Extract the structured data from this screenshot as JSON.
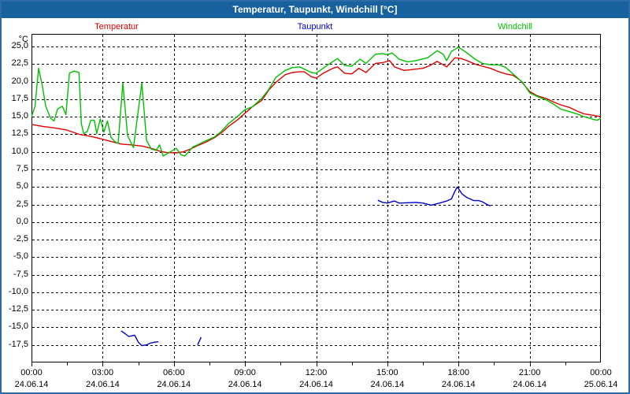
{
  "window": {
    "title": "Temperatur, Taupunkt, Windchill [°C]"
  },
  "legend": [
    {
      "label": "Temperatur",
      "color": "#e00000"
    },
    {
      "label": "Taupunkt",
      "color": "#0000cc"
    },
    {
      "label": "Windchill",
      "color": "#00c000"
    }
  ],
  "chart_data": {
    "type": "line",
    "title": "Temperatur, Taupunkt, Windchill [°C]",
    "ylabel_unit": "°C",
    "ylim": [
      -20.0,
      26.8
    ],
    "xlim_hours": [
      0,
      24
    ],
    "grid": "dashed",
    "legend_position": "top",
    "yticks": [
      {
        "value": 25.0,
        "label": "25,0"
      },
      {
        "value": 22.5,
        "label": "22,5"
      },
      {
        "value": 20.0,
        "label": "20,0"
      },
      {
        "value": 17.5,
        "label": "17,5"
      },
      {
        "value": 15.0,
        "label": "15,0"
      },
      {
        "value": 12.5,
        "label": "12,5"
      },
      {
        "value": 10.0,
        "label": "10,0"
      },
      {
        "value": 7.5,
        "label": "7,5"
      },
      {
        "value": 5.0,
        "label": "5,0"
      },
      {
        "value": 2.5,
        "label": "2,5"
      },
      {
        "value": 0.0,
        "label": "0,0"
      },
      {
        "value": -2.5,
        "label": "-2,5"
      },
      {
        "value": -5.0,
        "label": "-5,0"
      },
      {
        "value": -7.5,
        "label": "-7,5"
      },
      {
        "value": -10.0,
        "label": "-10,0"
      },
      {
        "value": -12.5,
        "label": "-12,5"
      },
      {
        "value": -15.0,
        "label": "-15,0"
      },
      {
        "value": -17.5,
        "label": "-17,5"
      }
    ],
    "xticks": [
      {
        "hour": 0,
        "time": "00:00",
        "date": "24.06.14"
      },
      {
        "hour": 3,
        "time": "03:00",
        "date": "24.06.14"
      },
      {
        "hour": 6,
        "time": "06:00",
        "date": "24.06.14"
      },
      {
        "hour": 9,
        "time": "09:00",
        "date": "24.06.14"
      },
      {
        "hour": 12,
        "time": "12:00",
        "date": "24.06.14"
      },
      {
        "hour": 15,
        "time": "15:00",
        "date": "24.06.14"
      },
      {
        "hour": 18,
        "time": "18:00",
        "date": "24.06.14"
      },
      {
        "hour": 21,
        "time": "21:00",
        "date": "24.06.14"
      },
      {
        "hour": 24,
        "time": "00:00",
        "date": "25.06.14"
      }
    ],
    "series": [
      {
        "name": "Temperatur",
        "color": "#e00000",
        "segments": [
          [
            [
              0,
              13.9
            ],
            [
              0.5,
              13.6
            ],
            [
              1,
              13.4
            ],
            [
              1.5,
              13.1
            ],
            [
              2,
              12.5
            ],
            [
              2.5,
              12.2
            ],
            [
              3,
              11.8
            ],
            [
              3.5,
              11.35
            ],
            [
              3.8,
              11.1
            ],
            [
              4.2,
              11.0
            ],
            [
              4.7,
              10.8
            ],
            [
              5.1,
              10.45
            ],
            [
              5.4,
              10.1
            ],
            [
              5.7,
              9.9
            ],
            [
              6.1,
              9.85
            ],
            [
              6.4,
              10.0
            ],
            [
              6.7,
              10.4
            ],
            [
              7,
              10.9
            ],
            [
              7.3,
              11.3
            ],
            [
              7.7,
              12.0
            ],
            [
              8,
              12.7
            ],
            [
              8.3,
              13.6
            ],
            [
              8.7,
              14.6
            ],
            [
              9,
              15.5
            ],
            [
              9.3,
              16.4
            ],
            [
              9.7,
              17.3
            ],
            [
              10,
              18.8
            ],
            [
              10.3,
              19.9
            ],
            [
              10.7,
              21.0
            ],
            [
              11,
              21.3
            ],
            [
              11.3,
              21.4
            ],
            [
              11.5,
              21.4
            ],
            [
              11.8,
              20.7
            ],
            [
              12,
              20.5
            ],
            [
              12.3,
              21.2
            ],
            [
              12.7,
              21.9
            ],
            [
              12.9,
              22.1
            ],
            [
              13.2,
              21.2
            ],
            [
              13.5,
              21.1
            ],
            [
              13.8,
              21.9
            ],
            [
              14.1,
              21.3
            ],
            [
              14.5,
              22.6
            ],
            [
              14.8,
              22.7
            ],
            [
              15.1,
              23.0
            ],
            [
              15.3,
              22.1
            ],
            [
              15.7,
              21.6
            ],
            [
              16,
              21.7
            ],
            [
              16.5,
              21.9
            ],
            [
              16.8,
              22.3
            ],
            [
              17.1,
              22.9
            ],
            [
              17.35,
              22.4
            ],
            [
              17.5,
              22.1
            ],
            [
              17.85,
              23.4
            ],
            [
              18.1,
              23.3
            ],
            [
              18.35,
              23.0
            ],
            [
              18.7,
              22.5
            ],
            [
              19,
              22.2
            ],
            [
              19.35,
              21.9
            ],
            [
              19.7,
              21.4
            ],
            [
              20,
              21.1
            ],
            [
              20.3,
              20.9
            ],
            [
              20.6,
              20.2
            ],
            [
              21,
              18.6
            ],
            [
              21.3,
              18.0
            ],
            [
              21.7,
              17.6
            ],
            [
              22,
              17.1
            ],
            [
              22.3,
              16.7
            ],
            [
              22.7,
              16.3
            ],
            [
              23,
              15.8
            ],
            [
              23.3,
              15.4
            ],
            [
              23.7,
              15.2
            ],
            [
              24,
              15.0
            ]
          ]
        ]
      },
      {
        "name": "Taupunkt",
        "color": "#0000cc",
        "segments": [
          [
            [
              3.78,
              -15.5
            ],
            [
              3.95,
              -15.9
            ],
            [
              4.1,
              -16.3
            ],
            [
              4.25,
              -16.2
            ],
            [
              4.35,
              -16.1
            ],
            [
              4.5,
              -17.1
            ],
            [
              4.65,
              -17.6
            ],
            [
              4.85,
              -17.5
            ],
            [
              5.0,
              -17.25
            ],
            [
              5.2,
              -17.1
            ],
            [
              5.35,
              -17.05
            ]
          ],
          [
            [
              7.0,
              -17.5
            ],
            [
              7.15,
              -16.4
            ]
          ],
          [
            [
              14.6,
              3.1
            ],
            [
              14.8,
              2.8
            ],
            [
              15.0,
              2.7
            ],
            [
              15.3,
              3.0
            ],
            [
              15.5,
              2.7
            ],
            [
              15.85,
              2.75
            ],
            [
              16.2,
              2.8
            ],
            [
              16.5,
              2.7
            ],
            [
              16.85,
              2.4
            ],
            [
              17.2,
              2.7
            ],
            [
              17.5,
              3.0
            ],
            [
              17.7,
              3.3
            ],
            [
              17.85,
              4.4
            ],
            [
              17.95,
              5.0
            ],
            [
              18.15,
              4.0
            ],
            [
              18.35,
              3.5
            ],
            [
              18.65,
              3.05
            ],
            [
              18.85,
              3.05
            ],
            [
              19.0,
              2.9
            ],
            [
              19.2,
              2.5
            ],
            [
              19.35,
              2.3
            ]
          ]
        ]
      },
      {
        "name": "Windchill",
        "color": "#00c000",
        "segments": [
          [
            [
              0,
              15.0
            ],
            [
              0.15,
              16.5
            ],
            [
              0.3,
              21.9
            ],
            [
              0.45,
              19.5
            ],
            [
              0.6,
              16.5
            ],
            [
              0.8,
              14.8
            ],
            [
              0.95,
              14.4
            ],
            [
              1.1,
              16.1
            ],
            [
              1.3,
              16.5
            ],
            [
              1.45,
              15.3
            ],
            [
              1.6,
              21.2
            ],
            [
              1.8,
              21.5
            ],
            [
              2.0,
              21.3
            ],
            [
              2.1,
              14.0
            ],
            [
              2.2,
              12.6
            ],
            [
              2.35,
              12.9
            ],
            [
              2.5,
              14.5
            ],
            [
              2.65,
              14.5
            ],
            [
              2.75,
              12.6
            ],
            [
              2.9,
              14.7
            ],
            [
              3.05,
              12.8
            ],
            [
              3.2,
              14.4
            ],
            [
              3.35,
              12.1
            ],
            [
              3.5,
              11.5
            ],
            [
              3.65,
              11.2
            ],
            [
              3.85,
              19.8
            ],
            [
              4.05,
              12.3
            ],
            [
              4.3,
              10.6
            ],
            [
              4.65,
              19.8
            ],
            [
              4.85,
              11.6
            ],
            [
              5.05,
              10.4
            ],
            [
              5.25,
              10.2
            ],
            [
              5.4,
              11.0
            ],
            [
              5.55,
              9.4
            ],
            [
              5.8,
              9.9
            ],
            [
              6.1,
              10.5
            ],
            [
              6.3,
              9.6
            ],
            [
              6.45,
              9.4
            ],
            [
              6.6,
              9.9
            ],
            [
              6.8,
              10.7
            ],
            [
              7,
              11.0
            ],
            [
              7.3,
              11.5
            ],
            [
              7.7,
              12.1
            ],
            [
              8,
              12.9
            ],
            [
              8.3,
              14.0
            ],
            [
              8.7,
              15.1
            ],
            [
              9,
              16.0
            ],
            [
              9.3,
              16.4
            ],
            [
              9.7,
              17.6
            ],
            [
              10,
              18.9
            ],
            [
              10.3,
              20.6
            ],
            [
              10.7,
              21.6
            ],
            [
              11,
              22.0
            ],
            [
              11.3,
              22.1
            ],
            [
              11.8,
              21.3
            ],
            [
              12,
              21.2
            ],
            [
              12.5,
              22.4
            ],
            [
              12.9,
              23.3
            ],
            [
              13.2,
              22.3
            ],
            [
              13.5,
              22.2
            ],
            [
              13.85,
              23.2
            ],
            [
              14.1,
              22.6
            ],
            [
              14.5,
              23.9
            ],
            [
              14.8,
              24.0
            ],
            [
              15.0,
              23.8
            ],
            [
              15.2,
              24.1
            ],
            [
              15.5,
              23.2
            ],
            [
              15.85,
              22.8
            ],
            [
              16.2,
              23.0
            ],
            [
              16.7,
              23.4
            ],
            [
              17.1,
              24.4
            ],
            [
              17.35,
              23.9
            ],
            [
              17.5,
              23.0
            ],
            [
              17.7,
              24.3
            ],
            [
              18.0,
              24.9
            ],
            [
              18.35,
              24.1
            ],
            [
              18.7,
              23.2
            ],
            [
              19,
              22.6
            ],
            [
              19.35,
              22.4
            ],
            [
              19.7,
              22.4
            ],
            [
              20,
              22.0
            ],
            [
              20.3,
              21.1
            ],
            [
              20.7,
              19.9
            ],
            [
              21,
              18.4
            ],
            [
              21.3,
              17.9
            ],
            [
              21.7,
              17.4
            ],
            [
              22,
              16.8
            ],
            [
              22.3,
              16.1
            ],
            [
              22.7,
              15.7
            ],
            [
              23,
              15.4
            ],
            [
              23.3,
              15.0
            ],
            [
              23.7,
              14.6
            ],
            [
              23.85,
              14.5
            ],
            [
              24,
              14.8
            ]
          ]
        ]
      }
    ]
  }
}
